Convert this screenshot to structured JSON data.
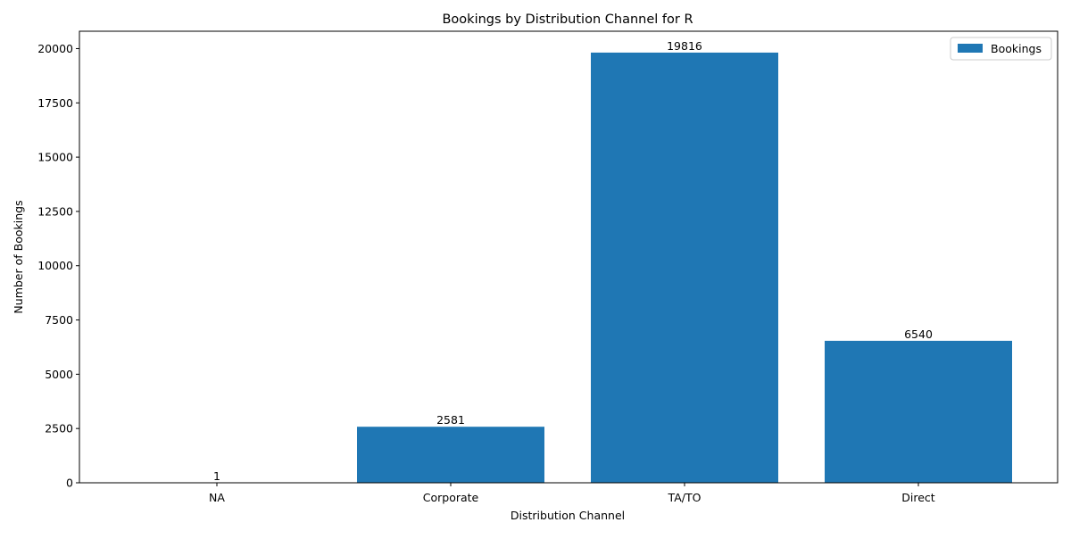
{
  "chart_data": {
    "type": "bar",
    "title": "Bookings by Distribution Channel for R",
    "xlabel": "Distribution Channel",
    "ylabel": "Number of Bookings",
    "categories": [
      "NA",
      "Corporate",
      "TA/TO",
      "Direct"
    ],
    "series": [
      {
        "name": "Bookings",
        "values": [
          1,
          2581,
          19816,
          6540
        ],
        "color": "#1f77b4"
      }
    ],
    "data_labels": [
      "1",
      "2581",
      "19816",
      "6540"
    ],
    "ylim": [
      0,
      20800
    ],
    "yticks": [
      0,
      2500,
      5000,
      7500,
      10000,
      12500,
      15000,
      17500,
      20000
    ],
    "ytick_labels": [
      "0",
      "2500",
      "5000",
      "7500",
      "10000",
      "12500",
      "15000",
      "17500",
      "20000"
    ],
    "grid": false,
    "legend": {
      "placement": "top-right",
      "entries": [
        "Bookings"
      ]
    }
  }
}
